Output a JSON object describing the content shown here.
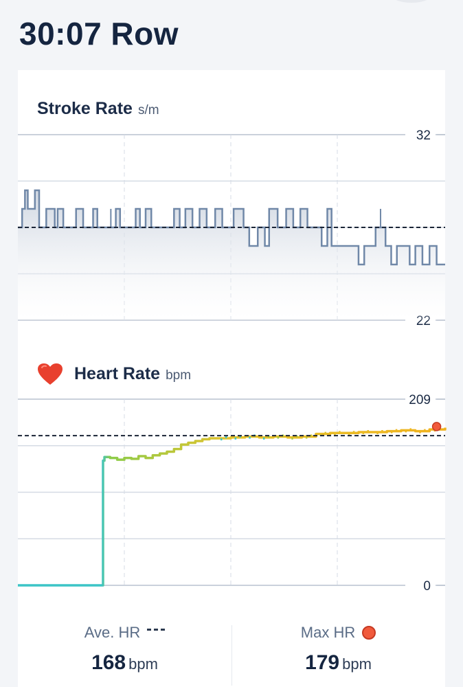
{
  "header": {
    "title": "30:07 Row"
  },
  "stroke_rate": {
    "title": "Stroke Rate",
    "unit": "s/m"
  },
  "heart_rate": {
    "title": "Heart Rate",
    "unit": "bpm"
  },
  "stats": {
    "avg": {
      "label": "Ave. HR",
      "value": "168",
      "unit": "bpm"
    },
    "max": {
      "label": "Max HR",
      "value": "179",
      "unit": "bpm"
    }
  },
  "colors": {
    "stroke_line": "#7088a8",
    "avg_line": "#1a2436",
    "grid": "#d5dbe4",
    "hr_low": "#3cc4c6",
    "hr_mid": "#8ccc4a",
    "hr_high": "#f0b21e",
    "max_dot": "#f15a3c"
  },
  "chart_data": [
    {
      "type": "line",
      "name": "stroke_rate",
      "ylim": [
        22,
        32
      ],
      "yticks": [
        "32",
        "22"
      ],
      "xlim": [
        0,
        30.1
      ],
      "average": 27,
      "x": [
        0,
        0.3,
        0.5,
        0.7,
        1.2,
        1.5,
        2.0,
        2.6,
        2.8,
        3.2,
        3.8,
        4.1,
        4.6,
        5.3,
        5.6,
        6.2,
        6.9,
        7.2,
        7.8,
        8.3,
        8.6,
        9.0,
        9.4,
        9.7,
        10.2,
        11.0,
        11.4,
        11.8,
        12.3,
        12.8,
        13.3,
        13.9,
        14.4,
        14.8,
        15.2,
        15.9,
        16.3,
        16.9,
        17.4,
        17.7,
        18.3,
        18.9,
        19.4,
        19.9,
        20.4,
        21.0,
        21.4,
        21.8,
        22.1,
        22.6,
        23.1,
        23.5,
        24.0,
        24.4,
        24.8,
        25.2,
        25.9,
        26.3,
        26.7,
        27.1,
        27.6,
        28.0,
        28.5,
        29.0,
        29.5,
        30.1
      ],
      "y": [
        27,
        28,
        29,
        28,
        29,
        27,
        28,
        27,
        28,
        27,
        27,
        28,
        27,
        28,
        27,
        27,
        28,
        27,
        27,
        28,
        27,
        28,
        27,
        27,
        27,
        28,
        27,
        28,
        27,
        28,
        27,
        28,
        27,
        27,
        28,
        27,
        26,
        27,
        26,
        28,
        27,
        28,
        27,
        28,
        27,
        27,
        26,
        28,
        26,
        26,
        26,
        26,
        25,
        26,
        26,
        27,
        26,
        25,
        26,
        26,
        25,
        26,
        25,
        26,
        25,
        25
      ]
    },
    {
      "type": "line",
      "name": "heart_rate",
      "ylim": [
        0,
        209
      ],
      "yticks": [
        "209",
        "0"
      ],
      "xlim": [
        0,
        30.1
      ],
      "average": 168,
      "max": 179,
      "x": [
        0,
        2,
        4,
        5.9,
        6.0,
        6.1,
        6.5,
        7.0,
        7.5,
        8.0,
        8.5,
        9.0,
        9.5,
        10.0,
        10.5,
        11.0,
        11.5,
        12.0,
        12.5,
        13.0,
        13.5,
        14.0,
        15.0,
        16.0,
        17.0,
        18.0,
        19.0,
        20.0,
        21.0,
        22.0,
        23.0,
        24.0,
        25.0,
        26.0,
        27.0,
        28.0,
        29.0,
        30.1
      ],
      "y": [
        0,
        0,
        0,
        0,
        140,
        144,
        143,
        141,
        143,
        142,
        145,
        143,
        146,
        148,
        150,
        153,
        158,
        160,
        162,
        164,
        165,
        165,
        166,
        167,
        166,
        167,
        166,
        167,
        170,
        171,
        171,
        172,
        172,
        173,
        174,
        173,
        175,
        177
      ]
    }
  ]
}
